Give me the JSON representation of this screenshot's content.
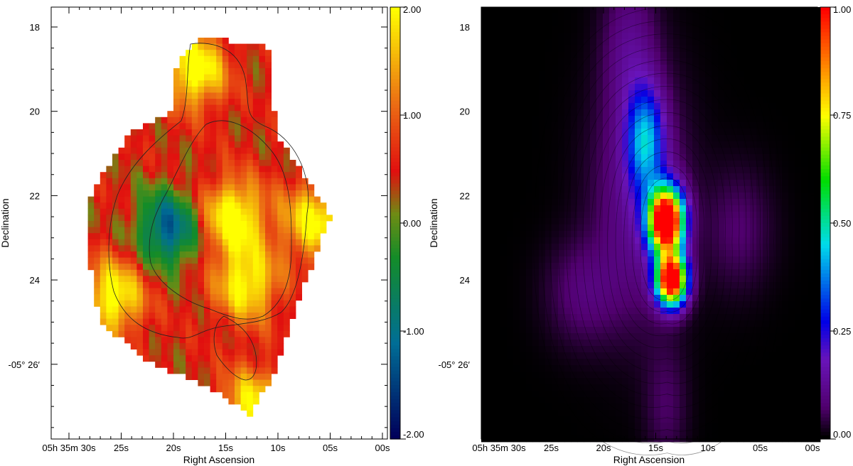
{
  "chart_data": [
    {
      "type": "heatmap",
      "title": "",
      "xlabel": "Right Ascension",
      "ylabel": "Declination",
      "x_ticks": [
        {
          "value": 30,
          "label": "05h 35m 30s"
        },
        {
          "value": 25,
          "label": "25s"
        },
        {
          "value": 20,
          "label": "20s"
        },
        {
          "value": 15,
          "label": "15s"
        },
        {
          "value": 10,
          "label": "10s"
        },
        {
          "value": 5,
          "label": "05s"
        },
        {
          "value": 0,
          "label": "00s"
        }
      ],
      "y_ticks": [
        {
          "value": 18,
          "label": "18"
        },
        {
          "value": 20,
          "label": "20"
        },
        {
          "value": 22,
          "label": "22"
        },
        {
          "value": 24,
          "label": "24"
        },
        {
          "value": 26,
          "label": "-05° 26′"
        }
      ],
      "xlim": [
        32.0,
        -0.5
      ],
      "ylim": [
        28.0,
        17.5
      ],
      "colorbar": {
        "min": -2.0,
        "max": 2.0,
        "ticks": [
          "2.00",
          "1.00",
          "0.00",
          "-1.00",
          "-2.00"
        ],
        "colormap": "blue-green-red-yellow"
      },
      "features": [
        {
          "ra_s": 20.5,
          "dec_min": 22.8,
          "value": -1.7
        },
        {
          "ra_s": 14.3,
          "dec_min": 22.5,
          "value": 1.8
        },
        {
          "ra_s": 13.0,
          "dec_min": 24.1,
          "value": 1.6
        },
        {
          "ra_s": 18.0,
          "dec_min": 19.0,
          "value": 1.8
        },
        {
          "ra_s": 25.8,
          "dec_min": 24.4,
          "value": 1.7
        },
        {
          "ra_s": 6.5,
          "dec_min": 22.6,
          "value": 1.6
        },
        {
          "ra_s": 12.5,
          "dec_min": 27.0,
          "value": 1.5
        }
      ],
      "region_outline": [
        [
          17.5,
          18.2
        ],
        [
          10.5,
          18.5
        ],
        [
          10.3,
          20.5
        ],
        [
          7.5,
          21.5
        ],
        [
          5,
          22.5
        ],
        [
          6.5,
          23.5
        ],
        [
          8.5,
          24.8
        ],
        [
          10,
          26.0
        ],
        [
          12.5,
          27.2
        ],
        [
          17,
          26.5
        ],
        [
          22,
          26.0
        ],
        [
          27,
          25.0
        ],
        [
          28.5,
          23.0
        ],
        [
          28,
          22.0
        ],
        [
          25.5,
          21.0
        ],
        [
          24,
          20.5
        ],
        [
          20,
          20.0
        ],
        [
          20,
          19.0
        ]
      ]
    },
    {
      "type": "heatmap",
      "title": "",
      "xlabel": "Right Ascension",
      "ylabel": "Declination",
      "x_ticks": [
        {
          "value": 30,
          "label": "05h 35m 30s"
        },
        {
          "value": 25,
          "label": "25s"
        },
        {
          "value": 20,
          "label": "20s"
        },
        {
          "value": 15,
          "label": "15s"
        },
        {
          "value": 10,
          "label": "10s"
        },
        {
          "value": 5,
          "label": "05s"
        },
        {
          "value": 0,
          "label": "00s"
        }
      ],
      "y_ticks": [
        {
          "value": 18,
          "label": "18"
        },
        {
          "value": 20,
          "label": "20"
        },
        {
          "value": 22,
          "label": "22"
        },
        {
          "value": 24,
          "label": "24"
        },
        {
          "value": 26,
          "label": "-05° 26′"
        }
      ],
      "xlim": [
        32.0,
        -0.5
      ],
      "ylim": [
        28.0,
        17.5
      ],
      "colorbar": {
        "min": 0.0,
        "max": 1.0,
        "ticks": [
          "1.00",
          "0.75",
          "0.50",
          "0.25",
          "0.00"
        ],
        "colormap": "black-purple-blue-cyan-green-yellow-red"
      },
      "features": [
        {
          "ra_s": 14.0,
          "dec_min": 22.6,
          "value": 1.0
        },
        {
          "ra_s": 13.5,
          "dec_min": 24.0,
          "value": 1.0
        },
        {
          "ra_s": 16.0,
          "dec_min": 20.5,
          "value": 0.3
        }
      ],
      "contour_levels": 14
    }
  ]
}
